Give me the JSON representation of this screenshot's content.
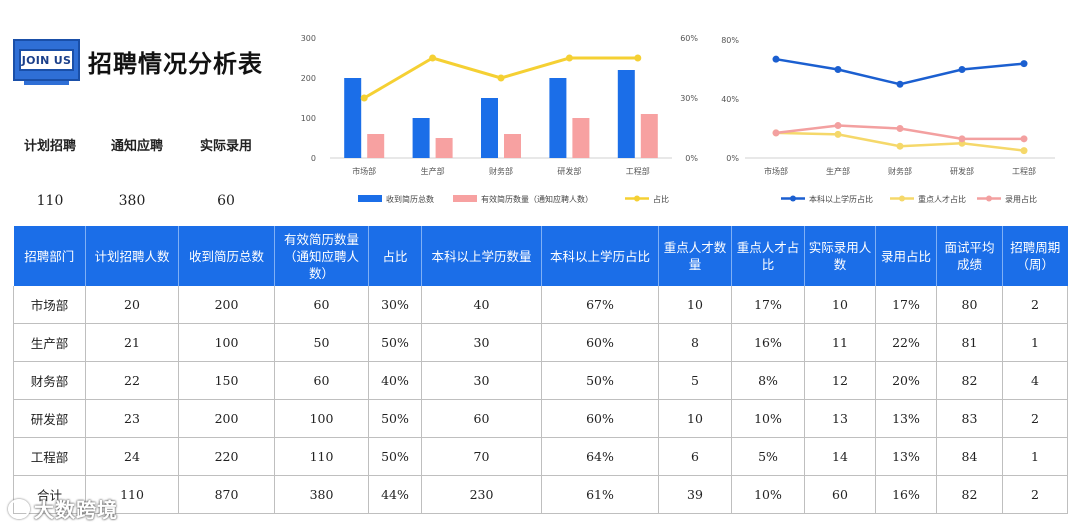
{
  "logo": {
    "text": "JOIN US"
  },
  "title": "招聘情况分析表",
  "kpis": [
    {
      "label": "计划招聘",
      "value": "110"
    },
    {
      "label": "通知应聘",
      "value": "380"
    },
    {
      "label": "实际录用",
      "value": "60"
    }
  ],
  "chart_data": [
    {
      "type": "bar",
      "categories": [
        "市场部",
        "生产部",
        "财务部",
        "研发部",
        "工程部"
      ],
      "y_ticks": [
        "0",
        "100",
        "200",
        "300"
      ],
      "y2_ticks": [
        "0%",
        "30%",
        "60%"
      ],
      "ylim": [
        0,
        300
      ],
      "y2lim": [
        0,
        0.6
      ],
      "series": [
        {
          "name": "收到简历总数",
          "kind": "bar",
          "axis": "left",
          "color": "#1b6ee8",
          "values": [
            200,
            100,
            150,
            200,
            220
          ]
        },
        {
          "name": "有效简历数量（通知应聘人数）",
          "kind": "bar",
          "axis": "left",
          "color": "#f7a1a1",
          "values": [
            60,
            50,
            60,
            100,
            110
          ]
        },
        {
          "name": "占比",
          "kind": "line",
          "axis": "right",
          "color": "#f5d033",
          "values": [
            0.3,
            0.5,
            0.4,
            0.5,
            0.5
          ]
        }
      ],
      "legend_position": "bottom",
      "grid": false
    },
    {
      "type": "line",
      "categories": [
        "市场部",
        "生产部",
        "财务部",
        "研发部",
        "工程部"
      ],
      "y_ticks": [
        "0%",
        "40%",
        "80%"
      ],
      "ylim": [
        0,
        0.8
      ],
      "series": [
        {
          "name": "本科以上学历占比",
          "color": "#1b5fd0",
          "values": [
            0.67,
            0.6,
            0.5,
            0.6,
            0.64
          ]
        },
        {
          "name": "重点人才占比",
          "color": "#f5d86a",
          "values": [
            0.17,
            0.16,
            0.08,
            0.1,
            0.05
          ]
        },
        {
          "name": "录用占比",
          "color": "#f3a0a0",
          "values": [
            0.17,
            0.22,
            0.2,
            0.13,
            0.13
          ]
        }
      ],
      "legend_position": "bottom",
      "grid": false
    }
  ],
  "table": {
    "headers": [
      "招聘部门",
      "计划招聘人数",
      "收到简历总数",
      "有效简历数量（通知应聘人数）",
      "占比",
      "本科以上学历数量",
      "本科以上学历占比",
      "重点人才数量",
      "重点人才占比",
      "实际录用人数",
      "录用占比",
      "面试平均成绩",
      "招聘周期（周）"
    ],
    "rows": [
      [
        "市场部",
        "20",
        "200",
        "60",
        "30%",
        "40",
        "67%",
        "10",
        "17%",
        "10",
        "17%",
        "80",
        "2"
      ],
      [
        "生产部",
        "21",
        "100",
        "50",
        "50%",
        "30",
        "60%",
        "8",
        "16%",
        "11",
        "22%",
        "81",
        "1"
      ],
      [
        "财务部",
        "22",
        "150",
        "60",
        "40%",
        "30",
        "50%",
        "5",
        "8%",
        "12",
        "20%",
        "82",
        "4"
      ],
      [
        "研发部",
        "23",
        "200",
        "100",
        "50%",
        "60",
        "60%",
        "10",
        "10%",
        "13",
        "13%",
        "83",
        "2"
      ],
      [
        "工程部",
        "24",
        "220",
        "110",
        "50%",
        "70",
        "64%",
        "6",
        "5%",
        "14",
        "13%",
        "84",
        "1"
      ],
      [
        "合计",
        "110",
        "870",
        "380",
        "44%",
        "230",
        "61%",
        "39",
        "10%",
        "60",
        "16%",
        "82",
        "2"
      ]
    ]
  },
  "watermark": "大数跨境"
}
